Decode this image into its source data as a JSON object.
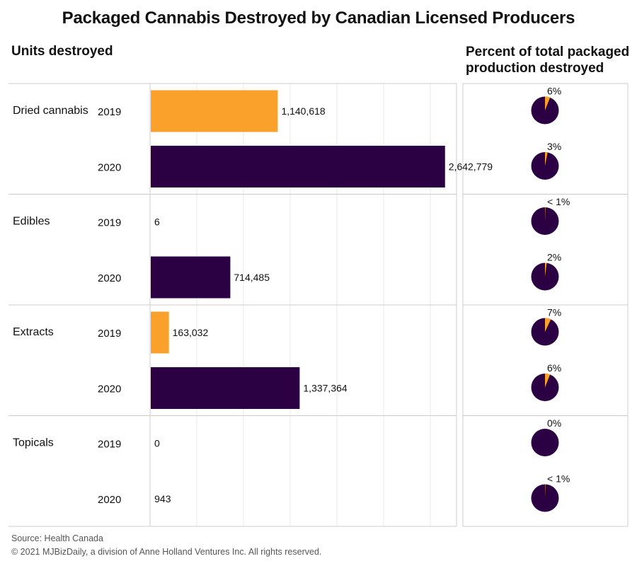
{
  "title": "Packaged Cannabis Destroyed by Canadian Licensed Producers",
  "left_header": "Units destroyed",
  "right_header": "Percent of total packaged production destroyed",
  "source": "Source: Health Canada",
  "copyright": "© 2021 MJBizDaily, a division of Anne Holland Ventures Inc. All rights reserved.",
  "colors": {
    "year_2019": "#F9A12A",
    "year_2020": "#2B0144",
    "grid": "#e8e8e8",
    "border": "#cccccc"
  },
  "chart_data": {
    "type": "bar",
    "orientation": "horizontal",
    "title": "Packaged Cannabis Destroyed by Canadian Licensed Producers",
    "xlim": [
      0,
      3000000
    ],
    "grid": true,
    "categories": [
      {
        "name": "Dried cannabis",
        "rows": [
          {
            "year": "2019",
            "value": 1140618,
            "value_label": "1,140,618",
            "percent": 6,
            "percent_label": "6%"
          },
          {
            "year": "2020",
            "value": 2642779,
            "value_label": "2,642,779",
            "percent": 3,
            "percent_label": "3%"
          }
        ]
      },
      {
        "name": "Edibles",
        "rows": [
          {
            "year": "2019",
            "value": 6,
            "value_label": "6",
            "percent": 0.5,
            "percent_label": "< 1%"
          },
          {
            "year": "2020",
            "value": 714485,
            "value_label": "714,485",
            "percent": 2,
            "percent_label": "2%"
          }
        ]
      },
      {
        "name": "Extracts",
        "rows": [
          {
            "year": "2019",
            "value": 163032,
            "value_label": "163,032",
            "percent": 7,
            "percent_label": "7%"
          },
          {
            "year": "2020",
            "value": 1337364,
            "value_label": "1,337,364",
            "percent": 6,
            "percent_label": "6%"
          }
        ]
      },
      {
        "name": "Topicals",
        "rows": [
          {
            "year": "2019",
            "value": 0,
            "value_label": "0",
            "percent": 0,
            "percent_label": "0%"
          },
          {
            "year": "2020",
            "value": 943,
            "value_label": "943",
            "percent": 0.5,
            "percent_label": "< 1%"
          }
        ]
      }
    ]
  }
}
